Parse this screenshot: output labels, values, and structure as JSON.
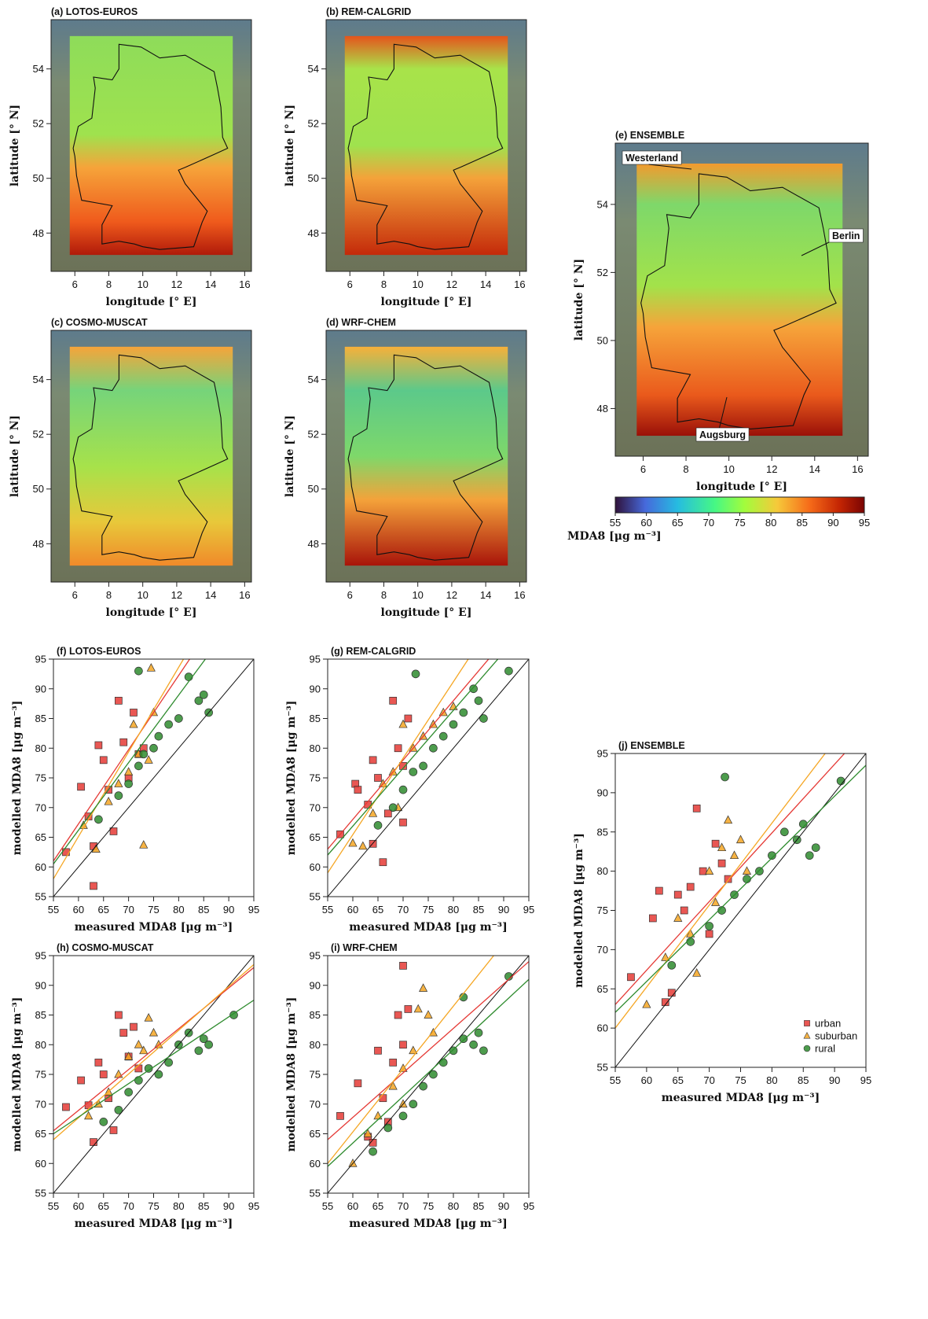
{
  "chart_data": [
    {
      "type": "map",
      "title": "(a) LOTOS-EUROS",
      "xlabel": "longitude [° E]",
      "ylabel": "latitude [° N]",
      "xlim": [
        4.6,
        16.4
      ],
      "ylim": [
        46.6,
        55.8
      ],
      "xticks": [
        6,
        8,
        10,
        12,
        14,
        16
      ],
      "yticks": [
        48,
        50,
        52,
        54
      ]
    },
    {
      "type": "map",
      "title": "(b) REM-CALGRID",
      "xlabel": "longitude [° E]",
      "ylabel": "latitude [° N]",
      "xlim": [
        4.6,
        16.4
      ],
      "ylim": [
        46.6,
        55.8
      ],
      "xticks": [
        6,
        8,
        10,
        12,
        14,
        16
      ],
      "yticks": [
        48,
        50,
        52,
        54
      ]
    },
    {
      "type": "map",
      "title": "(c) COSMO-MUSCAT",
      "xlabel": "longitude [° E]",
      "ylabel": "latitude [° N]",
      "xlim": [
        4.6,
        16.4
      ],
      "ylim": [
        46.6,
        55.8
      ],
      "xticks": [
        6,
        8,
        10,
        12,
        14,
        16
      ],
      "yticks": [
        48,
        50,
        52,
        54
      ]
    },
    {
      "type": "map",
      "title": "(d) WRF-CHEM",
      "xlabel": "longitude [° E]",
      "ylabel": "latitude [° N]",
      "xlim": [
        4.6,
        16.4
      ],
      "ylim": [
        46.6,
        55.8
      ],
      "xticks": [
        6,
        8,
        10,
        12,
        14,
        16
      ],
      "yticks": [
        48,
        50,
        52,
        54
      ]
    },
    {
      "type": "map",
      "title": "(e) ENSEMBLE",
      "xlabel": "longitude [° E]",
      "ylabel": "latitude [° N]",
      "xlim": [
        4.7,
        16.5
      ],
      "ylim": [
        46.6,
        55.8
      ],
      "xticks": [
        6,
        8,
        10,
        12,
        14,
        16
      ],
      "yticks": [
        48,
        50,
        52,
        54
      ],
      "annotations": [
        "Westerland",
        "Berlin",
        "Augsburg"
      ],
      "colorbar": {
        "label": "MDA8 [μg m⁻³]",
        "lim": [
          55,
          95
        ],
        "ticks": [
          55,
          60,
          65,
          70,
          75,
          80,
          85,
          90,
          95
        ]
      }
    },
    {
      "type": "scatter",
      "title": "(f) LOTOS-EUROS",
      "xlabel": "measured MDA8 [μg m⁻³]",
      "ylabel": "modelled MDA8 [μg m⁻³]",
      "xlim": [
        55,
        95
      ],
      "ylim": [
        55,
        95
      ],
      "xticks": [
        55,
        60,
        65,
        70,
        75,
        80,
        85,
        90,
        95
      ],
      "yticks": [
        55,
        60,
        65,
        70,
        75,
        80,
        85,
        90,
        95
      ],
      "series": [
        {
          "marker": "square",
          "color": "#e53935",
          "x": [
            57.5,
            60.5,
            62,
            63,
            64,
            65,
            66,
            67,
            68,
            69,
            70,
            71,
            72,
            73,
            63
          ],
          "values": [
            62.5,
            73.5,
            68.5,
            63.5,
            80.5,
            78,
            73,
            66,
            88,
            81,
            75,
            86,
            79,
            80,
            56.8
          ],
          "fit": [
            61,
            111
          ]
        },
        {
          "marker": "triangle",
          "color": "#f5a623",
          "x": [
            61,
            63.5,
            66,
            68,
            70,
            71,
            72,
            73,
            74,
            75,
            74.5
          ],
          "values": [
            67,
            63,
            71,
            74,
            76,
            84,
            79,
            63.7,
            78,
            86,
            93.5
          ],
          "fit": [
            58,
            115
          ]
        },
        {
          "marker": "circle",
          "color": "#2e8b2e",
          "x": [
            64,
            68,
            70,
            72,
            73,
            75,
            76,
            78,
            80,
            82,
            84,
            85,
            86,
            72
          ],
          "values": [
            68,
            72,
            74,
            77,
            79,
            80,
            82,
            84,
            85,
            92,
            88,
            89,
            86,
            93
          ],
          "fit": [
            60.5,
            106
          ]
        }
      ]
    },
    {
      "type": "scatter",
      "title": "(g) REM-CALGRID",
      "xlabel": "measured MDA8 [μg m⁻³]",
      "ylabel": "modelled MDA8 [μg m⁻³]",
      "xlim": [
        55,
        95
      ],
      "ylim": [
        55,
        95
      ],
      "xticks": [
        55,
        60,
        65,
        70,
        75,
        80,
        85,
        90,
        95
      ],
      "yticks": [
        55,
        60,
        65,
        70,
        75,
        80,
        85,
        90,
        95
      ],
      "series": [
        {
          "marker": "square",
          "color": "#e53935",
          "x": [
            57.5,
            60.5,
            61,
            63,
            64,
            65,
            66,
            67,
            68,
            69,
            70,
            71,
            64,
            70
          ],
          "values": [
            65.5,
            74,
            73,
            70.5,
            78,
            75,
            60.8,
            69,
            88,
            80,
            77,
            85,
            63.9,
            67.5
          ],
          "fit": [
            63,
            103
          ]
        },
        {
          "marker": "triangle",
          "color": "#f5a623",
          "x": [
            60,
            62,
            64,
            66,
            68,
            70,
            72,
            74,
            76,
            78,
            80,
            69
          ],
          "values": [
            64,
            63.5,
            69,
            74,
            76,
            84,
            80,
            82,
            84,
            86,
            87,
            70
          ],
          "fit": [
            59,
            110.5
          ]
        },
        {
          "marker": "circle",
          "color": "#2e8b2e",
          "x": [
            65,
            68,
            70,
            72,
            72.5,
            74,
            76,
            78,
            80,
            82,
            84,
            85,
            86,
            91
          ],
          "values": [
            67,
            70,
            73,
            76,
            92.5,
            77,
            80,
            82,
            84,
            86,
            90,
            88,
            85,
            93
          ],
          "fit": [
            62,
            101
          ]
        }
      ]
    },
    {
      "type": "scatter",
      "title": "(h) COSMO-MUSCAT",
      "xlabel": "measured MDA8 [μg m⁻³]",
      "ylabel": "modelled MDA8 [μg m⁻³]",
      "xlim": [
        55,
        95
      ],
      "ylim": [
        55,
        95
      ],
      "xticks": [
        55,
        60,
        65,
        70,
        75,
        80,
        85,
        90,
        95
      ],
      "yticks": [
        55,
        60,
        65,
        70,
        75,
        80,
        85,
        90,
        95
      ],
      "series": [
        {
          "marker": "square",
          "color": "#e53935",
          "x": [
            57.5,
            60.5,
            62,
            63,
            64,
            65,
            66,
            67,
            68,
            69,
            70,
            71,
            72
          ],
          "values": [
            69.5,
            74,
            69.8,
            63.6,
            77,
            75,
            71,
            65.6,
            85,
            82,
            78,
            83,
            76
          ],
          "fit": [
            65.5,
            93
          ]
        },
        {
          "marker": "triangle",
          "color": "#f5a623",
          "x": [
            62,
            64,
            66,
            68,
            70,
            72,
            73,
            74,
            75,
            76
          ],
          "values": [
            68,
            70,
            72,
            75,
            78,
            80,
            79,
            84.5,
            82,
            80
          ],
          "fit": [
            64,
            93.5
          ]
        },
        {
          "marker": "circle",
          "color": "#2e8b2e",
          "x": [
            65,
            68,
            70,
            72,
            74,
            76,
            78,
            80,
            82,
            84,
            85,
            86,
            91
          ],
          "values": [
            67,
            69,
            72,
            74,
            76,
            75,
            77,
            80,
            82,
            79,
            81,
            80,
            85
          ],
          "fit": [
            65,
            87.5
          ]
        }
      ]
    },
    {
      "type": "scatter",
      "title": "(i) WRF-CHEM",
      "xlabel": "measured MDA8 [μg m⁻³]",
      "ylabel": "modelled MDA8 [μg m⁻³]",
      "xlim": [
        55,
        95
      ],
      "ylim": [
        55,
        95
      ],
      "xticks": [
        55,
        60,
        65,
        70,
        75,
        80,
        85,
        90,
        95
      ],
      "yticks": [
        55,
        60,
        65,
        70,
        75,
        80,
        85,
        90,
        95
      ],
      "series": [
        {
          "marker": "square",
          "color": "#e53935",
          "x": [
            57.5,
            61,
            63,
            64,
            65,
            66,
            67,
            68,
            69,
            70,
            70,
            71
          ],
          "values": [
            68,
            73.5,
            64.5,
            63.5,
            79,
            71,
            67,
            77,
            85,
            80,
            93.3,
            86
          ],
          "fit": [
            64,
            94
          ]
        },
        {
          "marker": "triangle",
          "color": "#f5a623",
          "x": [
            60,
            63,
            65,
            68,
            70,
            72,
            73,
            74,
            75,
            76,
            70
          ],
          "values": [
            60,
            65,
            68,
            73,
            76,
            79,
            86,
            89.5,
            85,
            82,
            70
          ],
          "fit": [
            60,
            102.4
          ]
        },
        {
          "marker": "circle",
          "color": "#2e8b2e",
          "x": [
            64,
            67,
            70,
            72,
            74,
            76,
            78,
            80,
            82,
            84,
            85,
            86,
            91,
            82
          ],
          "values": [
            62,
            66,
            68,
            70,
            73,
            75,
            77,
            79,
            81,
            80,
            82,
            79,
            91.5,
            88
          ],
          "fit": [
            59.5,
            91
          ]
        }
      ]
    },
    {
      "type": "scatter",
      "title": "(j) ENSEMBLE",
      "xlabel": "measured MDA8 [μg m⁻³]",
      "ylabel": "modelled MDA8 [μg m⁻³]",
      "xlim": [
        55,
        95
      ],
      "ylim": [
        55,
        95
      ],
      "xticks": [
        55,
        60,
        65,
        70,
        75,
        80,
        85,
        90,
        95
      ],
      "yticks": [
        55,
        60,
        65,
        70,
        75,
        80,
        85,
        90,
        95
      ],
      "legend": "lower right",
      "series": [
        {
          "name": "urban",
          "marker": "square",
          "color": "#e53935",
          "x": [
            57.5,
            61,
            62,
            63,
            64,
            65,
            66,
            67,
            68,
            69,
            70,
            71,
            72,
            73
          ],
          "values": [
            66.5,
            74,
            77.5,
            63.3,
            64.5,
            77,
            75,
            78,
            88,
            80,
            72,
            83.5,
            81,
            79
          ],
          "fit": [
            63,
            98
          ]
        },
        {
          "name": "suburban",
          "marker": "triangle",
          "color": "#f5a623",
          "x": [
            60,
            63,
            65,
            67,
            68,
            70,
            71,
            72,
            73,
            74,
            75,
            76
          ],
          "values": [
            63,
            69,
            74,
            72,
            67,
            80,
            76,
            83,
            86.5,
            82,
            84,
            80
          ],
          "fit": [
            60,
            101.8
          ]
        },
        {
          "name": "rural",
          "marker": "circle",
          "color": "#2e8b2e",
          "x": [
            64,
            67,
            70,
            72,
            72.5,
            74,
            76,
            78,
            80,
            82,
            84,
            85,
            86,
            87,
            91
          ],
          "values": [
            68,
            71,
            73,
            75,
            92,
            77,
            79,
            80,
            82,
            85,
            84,
            86,
            82,
            83,
            91.5
          ],
          "fit": [
            62,
            93.5
          ]
        }
      ]
    }
  ]
}
